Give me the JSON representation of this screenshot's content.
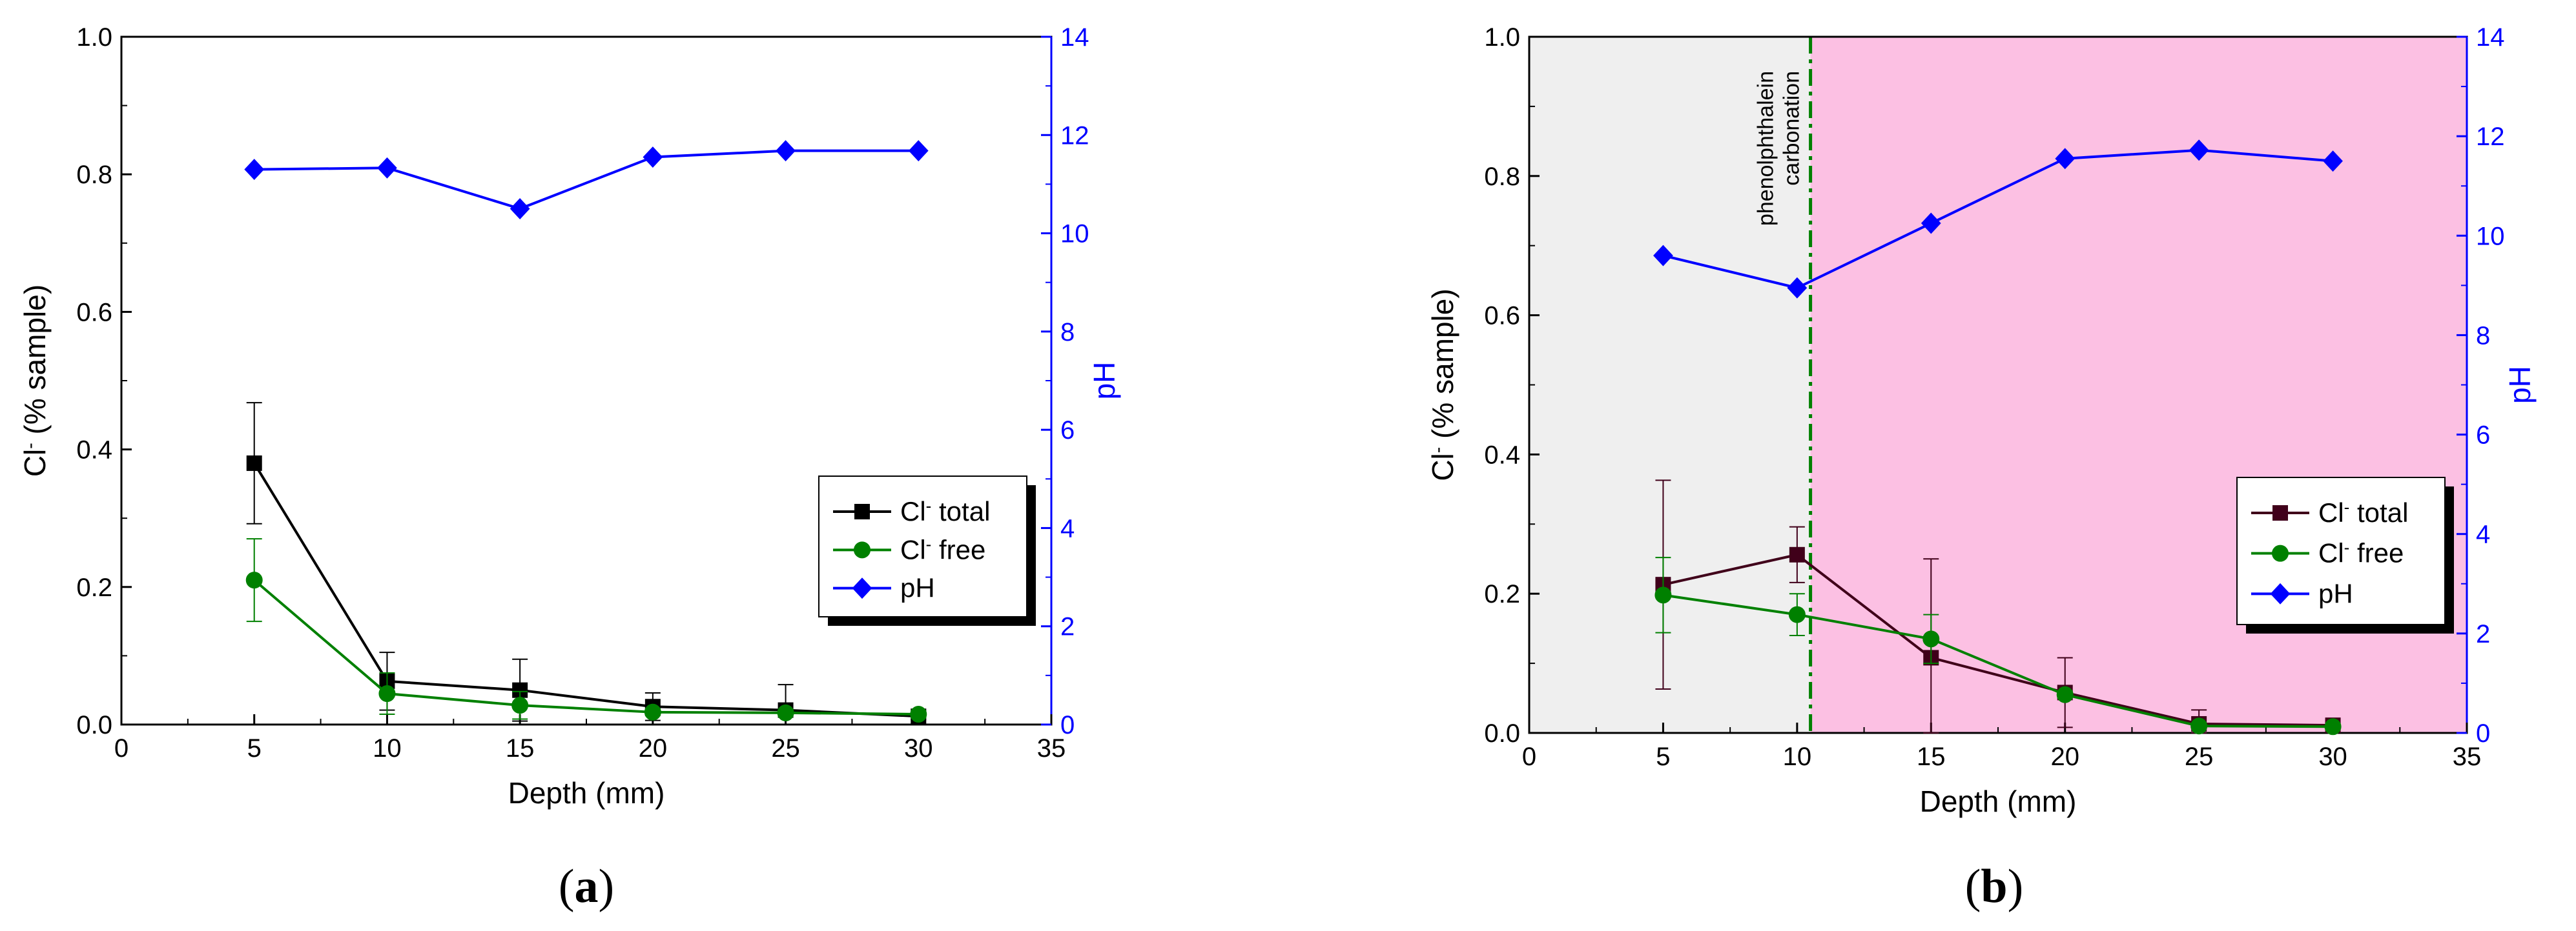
{
  "chart_data": [
    {
      "type": "line",
      "panel_label": "a",
      "xlabel": "Depth (mm)",
      "ylabel": "Cl⁻ (% sample)",
      "y2label": "pH",
      "xlim": [
        0,
        35
      ],
      "ylim": [
        0,
        1.0
      ],
      "y2lim": [
        0,
        14
      ],
      "xticks": [
        0,
        5,
        10,
        15,
        20,
        25,
        30,
        35
      ],
      "yticks": [
        0.0,
        0.2,
        0.4,
        0.6,
        0.8,
        1.0
      ],
      "y2ticks": [
        0,
        2,
        4,
        6,
        8,
        10,
        12,
        14
      ],
      "xtick_labels": [
        "0",
        "5",
        "10",
        "15",
        "20",
        "25",
        "30",
        "35"
      ],
      "ytick_labels": [
        "0.0",
        "0.2",
        "0.4",
        "0.6",
        "0.8",
        "1.0"
      ],
      "y2tick_labels": [
        "0",
        "2",
        "4",
        "6",
        "8",
        "10",
        "12",
        "14"
      ],
      "legend_position": "right",
      "grid": false,
      "x": [
        5,
        10,
        15,
        20,
        25,
        30
      ],
      "series": [
        {
          "name": "Cl⁻ total",
          "axis": "left",
          "color": "#000000",
          "marker": "square",
          "values": [
            0.38,
            0.063,
            0.05,
            0.026,
            0.021,
            0.012
          ],
          "errors": [
            0.088,
            0.042,
            0.045,
            0.02,
            0.037,
            0.005
          ]
        },
        {
          "name": "Cl⁻ free",
          "axis": "left",
          "color": "#008000",
          "marker": "circle",
          "values": [
            0.21,
            0.045,
            0.028,
            0.018,
            0.017,
            0.015
          ],
          "errors": [
            0.06,
            0.03,
            0.02,
            0.005,
            0.005,
            0.005
          ]
        },
        {
          "name": "pH",
          "axis": "right",
          "color": "#0000ff",
          "marker": "diamond",
          "values": [
            11.3,
            11.33,
            10.5,
            11.55,
            11.68,
            11.68
          ]
        }
      ]
    },
    {
      "type": "line",
      "panel_label": "b",
      "xlabel": "Depth (mm)",
      "ylabel": "Cl⁻ (% sample)",
      "y2label": "pH",
      "xlim": [
        0,
        35
      ],
      "ylim": [
        0,
        1.0
      ],
      "y2lim": [
        0,
        14
      ],
      "xticks": [
        0,
        5,
        10,
        15,
        20,
        25,
        30,
        35
      ],
      "yticks": [
        0.0,
        0.2,
        0.4,
        0.6,
        0.8,
        1.0
      ],
      "y2ticks": [
        0,
        2,
        4,
        6,
        8,
        10,
        12,
        14
      ],
      "xtick_labels": [
        "0",
        "5",
        "10",
        "15",
        "20",
        "25",
        "30",
        "35"
      ],
      "ytick_labels": [
        "0.0",
        "0.2",
        "0.4",
        "0.6",
        "0.8",
        "1.0"
      ],
      "y2tick_labels": [
        "0",
        "2",
        "4",
        "6",
        "8",
        "10",
        "12",
        "14"
      ],
      "legend_position": "right",
      "grid": false,
      "regions": [
        {
          "x0": 0,
          "x1": 10.5,
          "color": "#efefef"
        },
        {
          "x0": 10.5,
          "x1": 35,
          "color": "#fcc0e3"
        }
      ],
      "vline": {
        "x": 10.5,
        "color": "#008000",
        "style": "dash-dot",
        "label_lines": [
          "phenolphthalein",
          "carbonation"
        ]
      },
      "x": [
        5,
        10,
        15,
        20,
        25,
        30
      ],
      "series": [
        {
          "name": "Cl⁻ total",
          "axis": "left",
          "color": "#40001a",
          "marker": "square",
          "values": [
            0.213,
            0.256,
            0.108,
            0.058,
            0.013,
            0.011
          ],
          "errors": [
            0.15,
            0.04,
            0.142,
            0.05,
            0.02,
            0.004
          ]
        },
        {
          "name": "Cl⁻ free",
          "axis": "left",
          "color": "#008000",
          "marker": "circle",
          "values": [
            0.198,
            0.17,
            0.135,
            0.055,
            0.01,
            0.009
          ],
          "errors": [
            0.054,
            0.03,
            0.035,
            0.005,
            0.004,
            0.004
          ]
        },
        {
          "name": "pH",
          "axis": "right",
          "color": "#0000ff",
          "marker": "diamond",
          "values": [
            9.6,
            8.95,
            10.25,
            11.55,
            11.72,
            11.5
          ]
        }
      ]
    }
  ]
}
